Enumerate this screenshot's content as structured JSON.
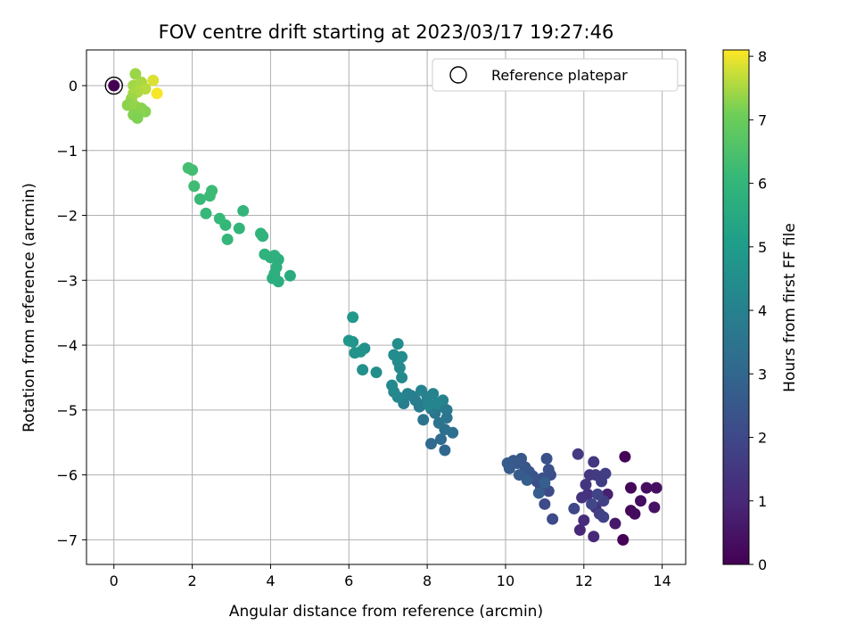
{
  "chart_data": {
    "type": "scatter",
    "title": "FOV centre drift starting at 2023/03/17 19:27:46",
    "xlabel": "Angular distance from reference (arcmin)",
    "ylabel": "Rotation from reference (arcmin)",
    "xlim": [
      -0.7,
      14.6
    ],
    "ylim": [
      -7.38,
      0.55
    ],
    "xticks": [
      "0",
      "2",
      "4",
      "6",
      "8",
      "10",
      "12",
      "14"
    ],
    "xtick_values": [
      0,
      2,
      4,
      6,
      8,
      10,
      12,
      14
    ],
    "yticks": [
      "0",
      "−1",
      "−2",
      "−3",
      "−4",
      "−5",
      "−6",
      "−7"
    ],
    "ytick_values": [
      0,
      -1,
      -2,
      -3,
      -4,
      -5,
      -6,
      -7
    ],
    "grid": true,
    "legend": {
      "label": "Reference platepar",
      "placement": "top-right"
    },
    "colorbar": {
      "label": "Hours from first FF file",
      "range": [
        0,
        8.1
      ],
      "ticks": [
        "0",
        "1",
        "2",
        "3",
        "4",
        "5",
        "6",
        "7",
        "8"
      ],
      "tick_values": [
        0,
        1,
        2,
        3,
        4,
        5,
        6,
        7,
        8
      ],
      "colormap": "viridis"
    },
    "reference_point": {
      "x": 0,
      "y": 0,
      "hours": 0
    },
    "points": [
      {
        "x": 13.0,
        "y": -7.0,
        "h": 0.05
      },
      {
        "x": 13.05,
        "y": -5.72,
        "h": 0.1
      },
      {
        "x": 13.2,
        "y": -6.2,
        "h": 0.15
      },
      {
        "x": 13.2,
        "y": -6.55,
        "h": 0.2
      },
      {
        "x": 13.3,
        "y": -6.6,
        "h": 0.25
      },
      {
        "x": 13.45,
        "y": -6.4,
        "h": 0.3
      },
      {
        "x": 13.6,
        "y": -6.2,
        "h": 0.35
      },
      {
        "x": 13.85,
        "y": -6.2,
        "h": 0.4
      },
      {
        "x": 13.8,
        "y": -6.5,
        "h": 0.45
      },
      {
        "x": 12.8,
        "y": -6.75,
        "h": 0.6
      },
      {
        "x": 12.6,
        "y": -6.3,
        "h": 0.8
      },
      {
        "x": 12.25,
        "y": -6.95,
        "h": 1.0
      },
      {
        "x": 11.9,
        "y": -6.85,
        "h": 1.05
      },
      {
        "x": 12.0,
        "y": -6.7,
        "h": 1.15
      },
      {
        "x": 12.3,
        "y": -6.5,
        "h": 1.25
      },
      {
        "x": 12.1,
        "y": -6.3,
        "h": 1.3
      },
      {
        "x": 11.95,
        "y": -6.35,
        "h": 1.35
      },
      {
        "x": 12.05,
        "y": -6.15,
        "h": 1.4
      },
      {
        "x": 12.15,
        "y": -6.0,
        "h": 1.45
      },
      {
        "x": 12.25,
        "y": -5.8,
        "h": 1.5
      },
      {
        "x": 11.85,
        "y": -5.68,
        "h": 1.55
      },
      {
        "x": 12.3,
        "y": -6.0,
        "h": 1.6
      },
      {
        "x": 12.45,
        "y": -6.1,
        "h": 1.65
      },
      {
        "x": 12.55,
        "y": -5.98,
        "h": 1.7
      },
      {
        "x": 12.5,
        "y": -6.4,
        "h": 1.75
      },
      {
        "x": 12.4,
        "y": -6.6,
        "h": 1.8
      },
      {
        "x": 12.5,
        "y": -6.65,
        "h": 1.85
      },
      {
        "x": 12.35,
        "y": -6.3,
        "h": 1.9
      },
      {
        "x": 12.2,
        "y": -6.45,
        "h": 1.95
      },
      {
        "x": 11.75,
        "y": -6.52,
        "h": 2.0
      },
      {
        "x": 11.2,
        "y": -6.68,
        "h": 2.05
      },
      {
        "x": 11.0,
        "y": -6.45,
        "h": 2.1
      },
      {
        "x": 11.1,
        "y": -6.25,
        "h": 2.1
      },
      {
        "x": 10.9,
        "y": -6.2,
        "h": 2.15
      },
      {
        "x": 10.8,
        "y": -6.1,
        "h": 2.2
      },
      {
        "x": 11.15,
        "y": -6.0,
        "h": 2.2
      },
      {
        "x": 11.1,
        "y": -5.92,
        "h": 2.25
      },
      {
        "x": 11.05,
        "y": -5.75,
        "h": 2.3
      },
      {
        "x": 10.95,
        "y": -6.05,
        "h": 2.3
      },
      {
        "x": 10.7,
        "y": -6.02,
        "h": 2.35
      },
      {
        "x": 10.6,
        "y": -5.95,
        "h": 2.4
      },
      {
        "x": 10.5,
        "y": -5.88,
        "h": 2.45
      },
      {
        "x": 10.4,
        "y": -5.75,
        "h": 2.5
      },
      {
        "x": 10.3,
        "y": -5.82,
        "h": 2.5
      },
      {
        "x": 10.2,
        "y": -5.78,
        "h": 2.55
      },
      {
        "x": 10.05,
        "y": -5.82,
        "h": 2.6
      },
      {
        "x": 10.1,
        "y": -5.9,
        "h": 2.6
      },
      {
        "x": 10.35,
        "y": -6.0,
        "h": 2.65
      },
      {
        "x": 10.55,
        "y": -6.08,
        "h": 2.7
      },
      {
        "x": 10.85,
        "y": -6.28,
        "h": 2.7
      },
      {
        "x": 11.0,
        "y": -6.12,
        "h": 2.75
      },
      {
        "x": 8.45,
        "y": -5.62,
        "h": 3.0
      },
      {
        "x": 8.1,
        "y": -5.52,
        "h": 3.1
      },
      {
        "x": 8.35,
        "y": -5.45,
        "h": 3.2
      },
      {
        "x": 8.65,
        "y": -5.35,
        "h": 3.3
      },
      {
        "x": 8.45,
        "y": -5.3,
        "h": 3.4
      },
      {
        "x": 8.3,
        "y": -5.2,
        "h": 3.45
      },
      {
        "x": 7.9,
        "y": -5.15,
        "h": 3.5
      },
      {
        "x": 8.5,
        "y": -5.12,
        "h": 3.55
      },
      {
        "x": 8.2,
        "y": -5.05,
        "h": 3.6
      },
      {
        "x": 8.5,
        "y": -5.0,
        "h": 3.65
      },
      {
        "x": 8.4,
        "y": -4.95,
        "h": 3.7
      },
      {
        "x": 8.1,
        "y": -4.98,
        "h": 3.7
      },
      {
        "x": 7.95,
        "y": -4.9,
        "h": 3.75
      },
      {
        "x": 7.8,
        "y": -4.95,
        "h": 3.8
      },
      {
        "x": 7.7,
        "y": -4.85,
        "h": 3.85
      },
      {
        "x": 7.6,
        "y": -4.78,
        "h": 3.9
      },
      {
        "x": 7.4,
        "y": -4.9,
        "h": 3.95
      },
      {
        "x": 7.5,
        "y": -4.75,
        "h": 4.0
      },
      {
        "x": 7.85,
        "y": -4.7,
        "h": 4.05
      },
      {
        "x": 8.0,
        "y": -4.8,
        "h": 4.05
      },
      {
        "x": 8.15,
        "y": -4.75,
        "h": 4.1
      },
      {
        "x": 8.4,
        "y": -4.85,
        "h": 4.1
      },
      {
        "x": 8.25,
        "y": -4.9,
        "h": 4.15
      },
      {
        "x": 8.05,
        "y": -4.92,
        "h": 4.15
      },
      {
        "x": 7.25,
        "y": -4.8,
        "h": 4.2
      },
      {
        "x": 7.15,
        "y": -4.72,
        "h": 4.25
      },
      {
        "x": 7.1,
        "y": -4.62,
        "h": 4.3
      },
      {
        "x": 7.35,
        "y": -4.5,
        "h": 4.3
      },
      {
        "x": 7.3,
        "y": -4.35,
        "h": 4.35
      },
      {
        "x": 7.25,
        "y": -4.25,
        "h": 4.35
      },
      {
        "x": 7.35,
        "y": -4.18,
        "h": 4.4
      },
      {
        "x": 7.15,
        "y": -4.15,
        "h": 4.4
      },
      {
        "x": 7.25,
        "y": -3.98,
        "h": 4.45
      },
      {
        "x": 6.7,
        "y": -4.42,
        "h": 4.5
      },
      {
        "x": 6.35,
        "y": -4.38,
        "h": 4.55
      },
      {
        "x": 6.4,
        "y": -4.05,
        "h": 4.6
      },
      {
        "x": 6.3,
        "y": -4.1,
        "h": 4.65
      },
      {
        "x": 6.15,
        "y": -4.12,
        "h": 4.7
      },
      {
        "x": 6.1,
        "y": -3.95,
        "h": 4.75
      },
      {
        "x": 6.0,
        "y": -3.93,
        "h": 4.8
      },
      {
        "x": 6.1,
        "y": -3.57,
        "h": 4.85
      },
      {
        "x": 4.5,
        "y": -2.93,
        "h": 5.6
      },
      {
        "x": 4.2,
        "y": -3.02,
        "h": 5.65
      },
      {
        "x": 4.05,
        "y": -2.97,
        "h": 5.7
      },
      {
        "x": 4.1,
        "y": -2.9,
        "h": 5.7
      },
      {
        "x": 4.15,
        "y": -2.8,
        "h": 5.75
      },
      {
        "x": 4.2,
        "y": -2.68,
        "h": 5.75
      },
      {
        "x": 4.1,
        "y": -2.62,
        "h": 5.8
      },
      {
        "x": 4.0,
        "y": -2.65,
        "h": 5.8
      },
      {
        "x": 3.85,
        "y": -2.6,
        "h": 5.85
      },
      {
        "x": 3.8,
        "y": -2.32,
        "h": 5.9
      },
      {
        "x": 3.75,
        "y": -2.28,
        "h": 5.9
      },
      {
        "x": 3.3,
        "y": -1.93,
        "h": 5.95
      },
      {
        "x": 3.2,
        "y": -2.2,
        "h": 6.0
      },
      {
        "x": 2.85,
        "y": -2.15,
        "h": 6.05
      },
      {
        "x": 2.9,
        "y": -2.37,
        "h": 6.05
      },
      {
        "x": 2.7,
        "y": -2.05,
        "h": 6.1
      },
      {
        "x": 2.35,
        "y": -1.97,
        "h": 6.1
      },
      {
        "x": 2.2,
        "y": -1.75,
        "h": 6.15
      },
      {
        "x": 2.45,
        "y": -1.7,
        "h": 6.2
      },
      {
        "x": 2.5,
        "y": -1.62,
        "h": 6.2
      },
      {
        "x": 2.05,
        "y": -1.55,
        "h": 6.25
      },
      {
        "x": 2.0,
        "y": -1.3,
        "h": 6.3
      },
      {
        "x": 1.9,
        "y": -1.27,
        "h": 6.35
      },
      {
        "x": 0.55,
        "y": 0.18,
        "h": 7.4
      },
      {
        "x": 0.5,
        "y": 0.0,
        "h": 7.45
      },
      {
        "x": 0.7,
        "y": 0.05,
        "h": 7.5
      },
      {
        "x": 1.0,
        "y": 0.08,
        "h": 7.85
      },
      {
        "x": 1.1,
        "y": -0.12,
        "h": 8.05
      },
      {
        "x": 0.8,
        "y": -0.05,
        "h": 7.6
      },
      {
        "x": 0.6,
        "y": -0.1,
        "h": 7.55
      },
      {
        "x": 0.5,
        "y": -0.12,
        "h": 7.5
      },
      {
        "x": 0.45,
        "y": -0.2,
        "h": 7.4
      },
      {
        "x": 0.4,
        "y": -0.28,
        "h": 7.35
      },
      {
        "x": 0.35,
        "y": -0.3,
        "h": 7.3
      },
      {
        "x": 0.55,
        "y": -0.32,
        "h": 7.35
      },
      {
        "x": 0.7,
        "y": -0.35,
        "h": 7.3
      },
      {
        "x": 0.8,
        "y": -0.4,
        "h": 7.25
      },
      {
        "x": 0.65,
        "y": -0.42,
        "h": 7.3
      },
      {
        "x": 0.5,
        "y": -0.45,
        "h": 7.25
      },
      {
        "x": 0.6,
        "y": -0.5,
        "h": 7.2
      }
    ]
  }
}
